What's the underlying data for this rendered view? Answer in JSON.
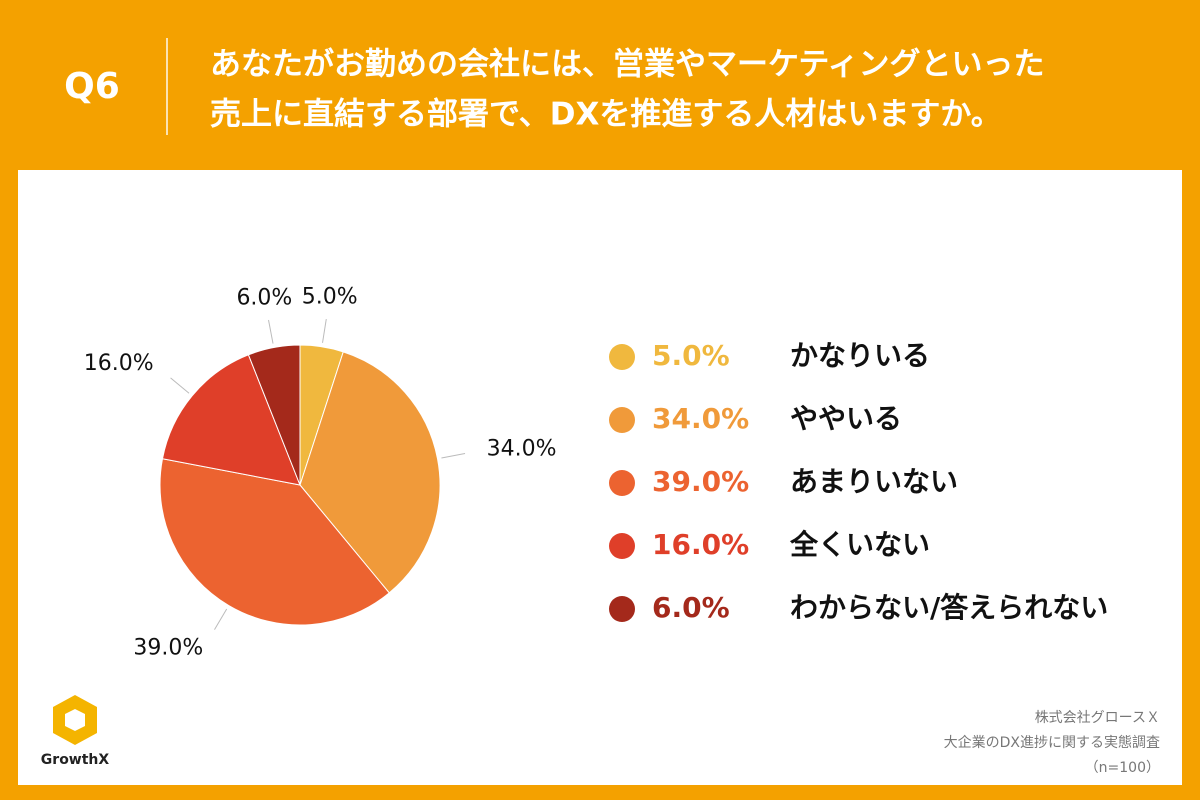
{
  "header": {
    "label": "Q6",
    "title": [
      "あなたがお勤めの会社には、営業やマーケティングといった",
      "売上に直結する部署で、DXを推進する人材はいますか。"
    ]
  },
  "chart_data": {
    "type": "pie",
    "categories": [
      "かなりいる",
      "ややいる",
      "あまりいない",
      "全くいない",
      "わからない/答えられない"
    ],
    "values": [
      5,
      34,
      39,
      16,
      6
    ],
    "value_labels": [
      "5.0%",
      "34.0%",
      "39.0%",
      "16.0%",
      "6.0%"
    ],
    "colors": [
      "#f0b83e",
      "#f09a3a",
      "#ec6330",
      "#df3f29",
      "#a4291b"
    ]
  },
  "footer": {
    "logo": "GrowthX",
    "notes": [
      "株式会社グロースＸ",
      "大企業のDX進捗に関する実態調査",
      "（n=100）"
    ]
  }
}
